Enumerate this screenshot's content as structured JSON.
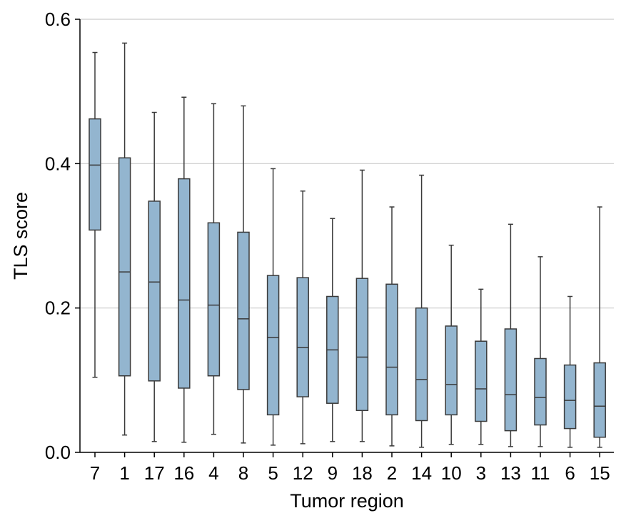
{
  "chart_data": {
    "type": "box",
    "xlabel": "Tumor region",
    "ylabel": "TLS score",
    "ylim": [
      0,
      0.6
    ],
    "yticks": [
      "0.0",
      "0.2",
      "0.4",
      "0.6"
    ],
    "grid": "horizontal",
    "box_color": "#93b5cf",
    "line_color": "#3a3a3a",
    "grid_color": "#cccccc",
    "categories": [
      "7",
      "1",
      "17",
      "16",
      "4",
      "8",
      "5",
      "12",
      "9",
      "18",
      "2",
      "14",
      "10",
      "3",
      "13",
      "11",
      "6",
      "15"
    ],
    "boxes": [
      {
        "category": "7",
        "whislo": 0.104,
        "q1": 0.308,
        "median": 0.398,
        "q3": 0.462,
        "whishi": 0.554
      },
      {
        "category": "1",
        "whislo": 0.024,
        "q1": 0.106,
        "median": 0.25,
        "q3": 0.408,
        "whishi": 0.567
      },
      {
        "category": "17",
        "whislo": 0.015,
        "q1": 0.099,
        "median": 0.236,
        "q3": 0.348,
        "whishi": 0.471
      },
      {
        "category": "16",
        "whislo": 0.014,
        "q1": 0.089,
        "median": 0.211,
        "q3": 0.379,
        "whishi": 0.492
      },
      {
        "category": "4",
        "whislo": 0.025,
        "q1": 0.106,
        "median": 0.204,
        "q3": 0.318,
        "whishi": 0.483
      },
      {
        "category": "8",
        "whislo": 0.013,
        "q1": 0.087,
        "median": 0.185,
        "q3": 0.305,
        "whishi": 0.48
      },
      {
        "category": "5",
        "whislo": 0.01,
        "q1": 0.052,
        "median": 0.159,
        "q3": 0.245,
        "whishi": 0.393
      },
      {
        "category": "12",
        "whislo": 0.012,
        "q1": 0.077,
        "median": 0.145,
        "q3": 0.242,
        "whishi": 0.362
      },
      {
        "category": "9",
        "whislo": 0.015,
        "q1": 0.068,
        "median": 0.142,
        "q3": 0.216,
        "whishi": 0.324
      },
      {
        "category": "18",
        "whislo": 0.015,
        "q1": 0.058,
        "median": 0.132,
        "q3": 0.241,
        "whishi": 0.391
      },
      {
        "category": "2",
        "whislo": 0.009,
        "q1": 0.052,
        "median": 0.118,
        "q3": 0.233,
        "whishi": 0.34
      },
      {
        "category": "14",
        "whislo": 0.007,
        "q1": 0.044,
        "median": 0.101,
        "q3": 0.2,
        "whishi": 0.384
      },
      {
        "category": "10",
        "whislo": 0.011,
        "q1": 0.052,
        "median": 0.094,
        "q3": 0.175,
        "whishi": 0.287
      },
      {
        "category": "3",
        "whislo": 0.011,
        "q1": 0.043,
        "median": 0.088,
        "q3": 0.154,
        "whishi": 0.226
      },
      {
        "category": "13",
        "whislo": 0.008,
        "q1": 0.03,
        "median": 0.08,
        "q3": 0.171,
        "whishi": 0.316
      },
      {
        "category": "11",
        "whislo": 0.008,
        "q1": 0.038,
        "median": 0.076,
        "q3": 0.13,
        "whishi": 0.271
      },
      {
        "category": "6",
        "whislo": 0.007,
        "q1": 0.033,
        "median": 0.072,
        "q3": 0.121,
        "whishi": 0.216
      },
      {
        "category": "15",
        "whislo": 0.007,
        "q1": 0.021,
        "median": 0.064,
        "q3": 0.124,
        "whishi": 0.34
      }
    ]
  }
}
